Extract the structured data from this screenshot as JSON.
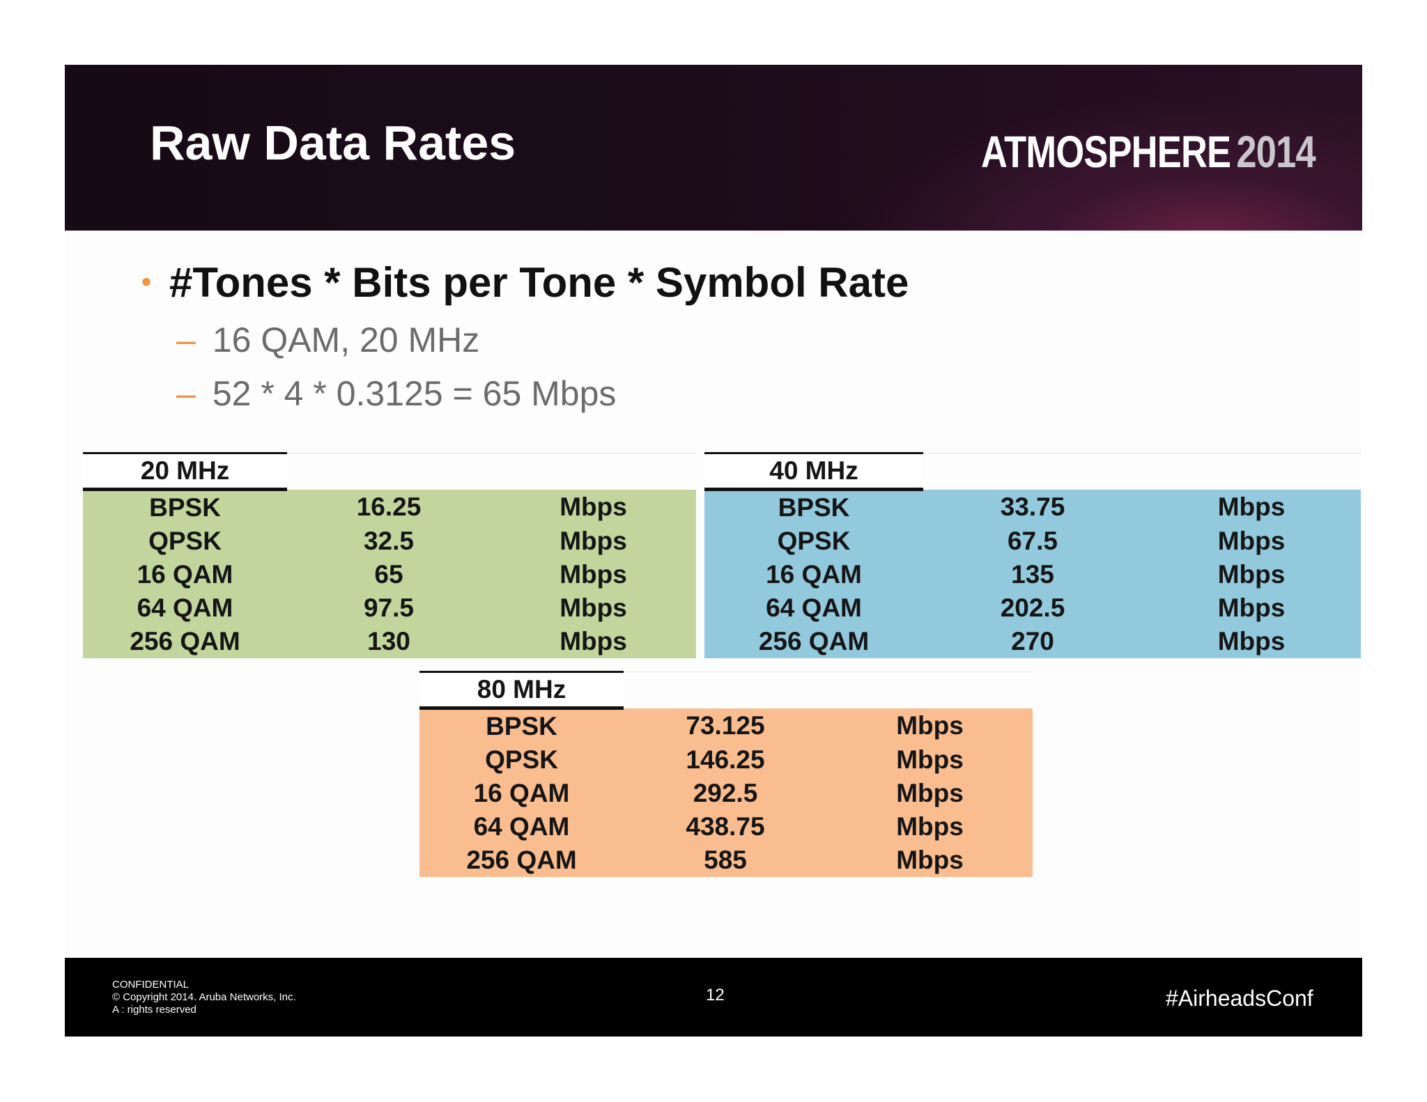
{
  "header": {
    "title": "Raw Data Rates",
    "brand_main": "ATMOSPHERE",
    "brand_year": "2014"
  },
  "body": {
    "bullet": "#Tones * Bits per Tone * Symbol Rate",
    "subs": [
      "16 QAM, 20 MHz",
      "52 * 4 * 0.3125 = 65 Mbps"
    ],
    "bullet_glyph": "•",
    "dash_glyph": "–"
  },
  "tables": [
    {
      "label": "20 MHz",
      "rows": [
        {
          "mod": "BPSK",
          "rate": "16.25",
          "unit": "Mbps"
        },
        {
          "mod": "QPSK",
          "rate": "32.5",
          "unit": "Mbps"
        },
        {
          "mod": "16 QAM",
          "rate": "65",
          "unit": "Mbps"
        },
        {
          "mod": "64 QAM",
          "rate": "97.5",
          "unit": "Mbps"
        },
        {
          "mod": "256 QAM",
          "rate": "130",
          "unit": "Mbps"
        }
      ]
    },
    {
      "label": "40 MHz",
      "rows": [
        {
          "mod": "BPSK",
          "rate": "33.75",
          "unit": "Mbps"
        },
        {
          "mod": "QPSK",
          "rate": "67.5",
          "unit": "Mbps"
        },
        {
          "mod": "16 QAM",
          "rate": "135",
          "unit": "Mbps"
        },
        {
          "mod": "64 QAM",
          "rate": "202.5",
          "unit": "Mbps"
        },
        {
          "mod": "256 QAM",
          "rate": "270",
          "unit": "Mbps"
        }
      ]
    },
    {
      "label": "80 MHz",
      "rows": [
        {
          "mod": "BPSK",
          "rate": "73.125",
          "unit": "Mbps"
        },
        {
          "mod": "QPSK",
          "rate": "146.25",
          "unit": "Mbps"
        },
        {
          "mod": "16 QAM",
          "rate": "292.5",
          "unit": "Mbps"
        },
        {
          "mod": "64 QAM",
          "rate": "438.75",
          "unit": "Mbps"
        },
        {
          "mod": "256 QAM",
          "rate": "585",
          "unit": "Mbps"
        }
      ]
    }
  ],
  "footer": {
    "confidential": "CONFIDENTIAL",
    "copyright": "© Copyright 2014. Aruba Networks, Inc.",
    "rights": "A : rights reserved",
    "page": "12",
    "hashtag": "#AirheadsConf"
  },
  "colors": {
    "table_20": "#c2d59c",
    "table_40": "#92c9dc",
    "table_80": "#f9bd8f",
    "accent": "#f2943f"
  }
}
